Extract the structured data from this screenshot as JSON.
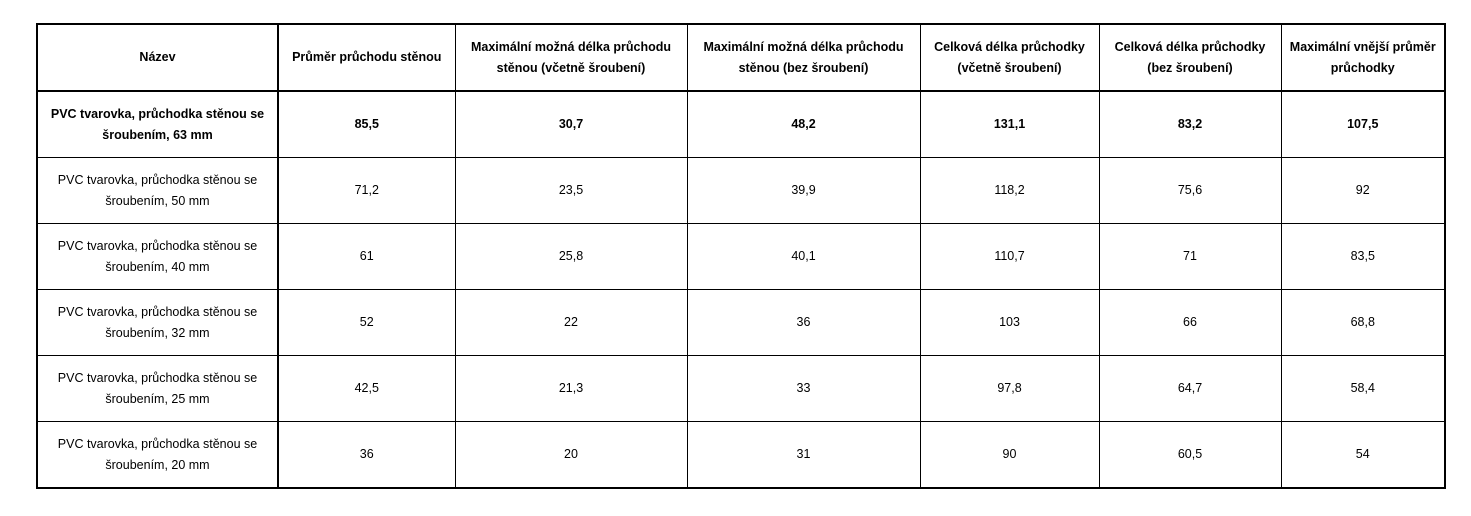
{
  "table": {
    "headers": [
      "Název",
      "Průměr průchodu stěnou",
      "Maximální možná délka průchodu stěnou (včetně šroubení)",
      "Maximální možná délka průchodu stěnou (bez šroubení)",
      "Celková délka průchodky (včetně šroubení)",
      "Celková délka průchodky (bez šroubení)",
      "Maximální vnější průměr průchodky"
    ],
    "rows": [
      [
        "PVC tvarovka, průchodka stěnou se šroubením, 63 mm",
        "85,5",
        "30,7",
        "48,2",
        "131,1",
        "83,2",
        "107,5"
      ],
      [
        "PVC tvarovka, průchodka stěnou se šroubením, 50 mm",
        "71,2",
        "23,5",
        "39,9",
        "118,2",
        "75,6",
        "92"
      ],
      [
        "PVC tvarovka, průchodka stěnou se šroubením, 40 mm",
        "61",
        "25,8",
        "40,1",
        "110,7",
        "71",
        "83,5"
      ],
      [
        "PVC tvarovka, průchodka stěnou se šroubením, 32 mm",
        "52",
        "22",
        "36",
        "103",
        "66",
        "68,8"
      ],
      [
        "PVC tvarovka, průchodka stěnou se šroubením, 25 mm",
        "42,5",
        "21,3",
        "33",
        "97,8",
        "64,7",
        "58,4"
      ],
      [
        "PVC tvarovka, průchodka stěnou se šroubením, 20 mm",
        "36",
        "20",
        "31",
        "90",
        "60,5",
        "54"
      ]
    ]
  }
}
